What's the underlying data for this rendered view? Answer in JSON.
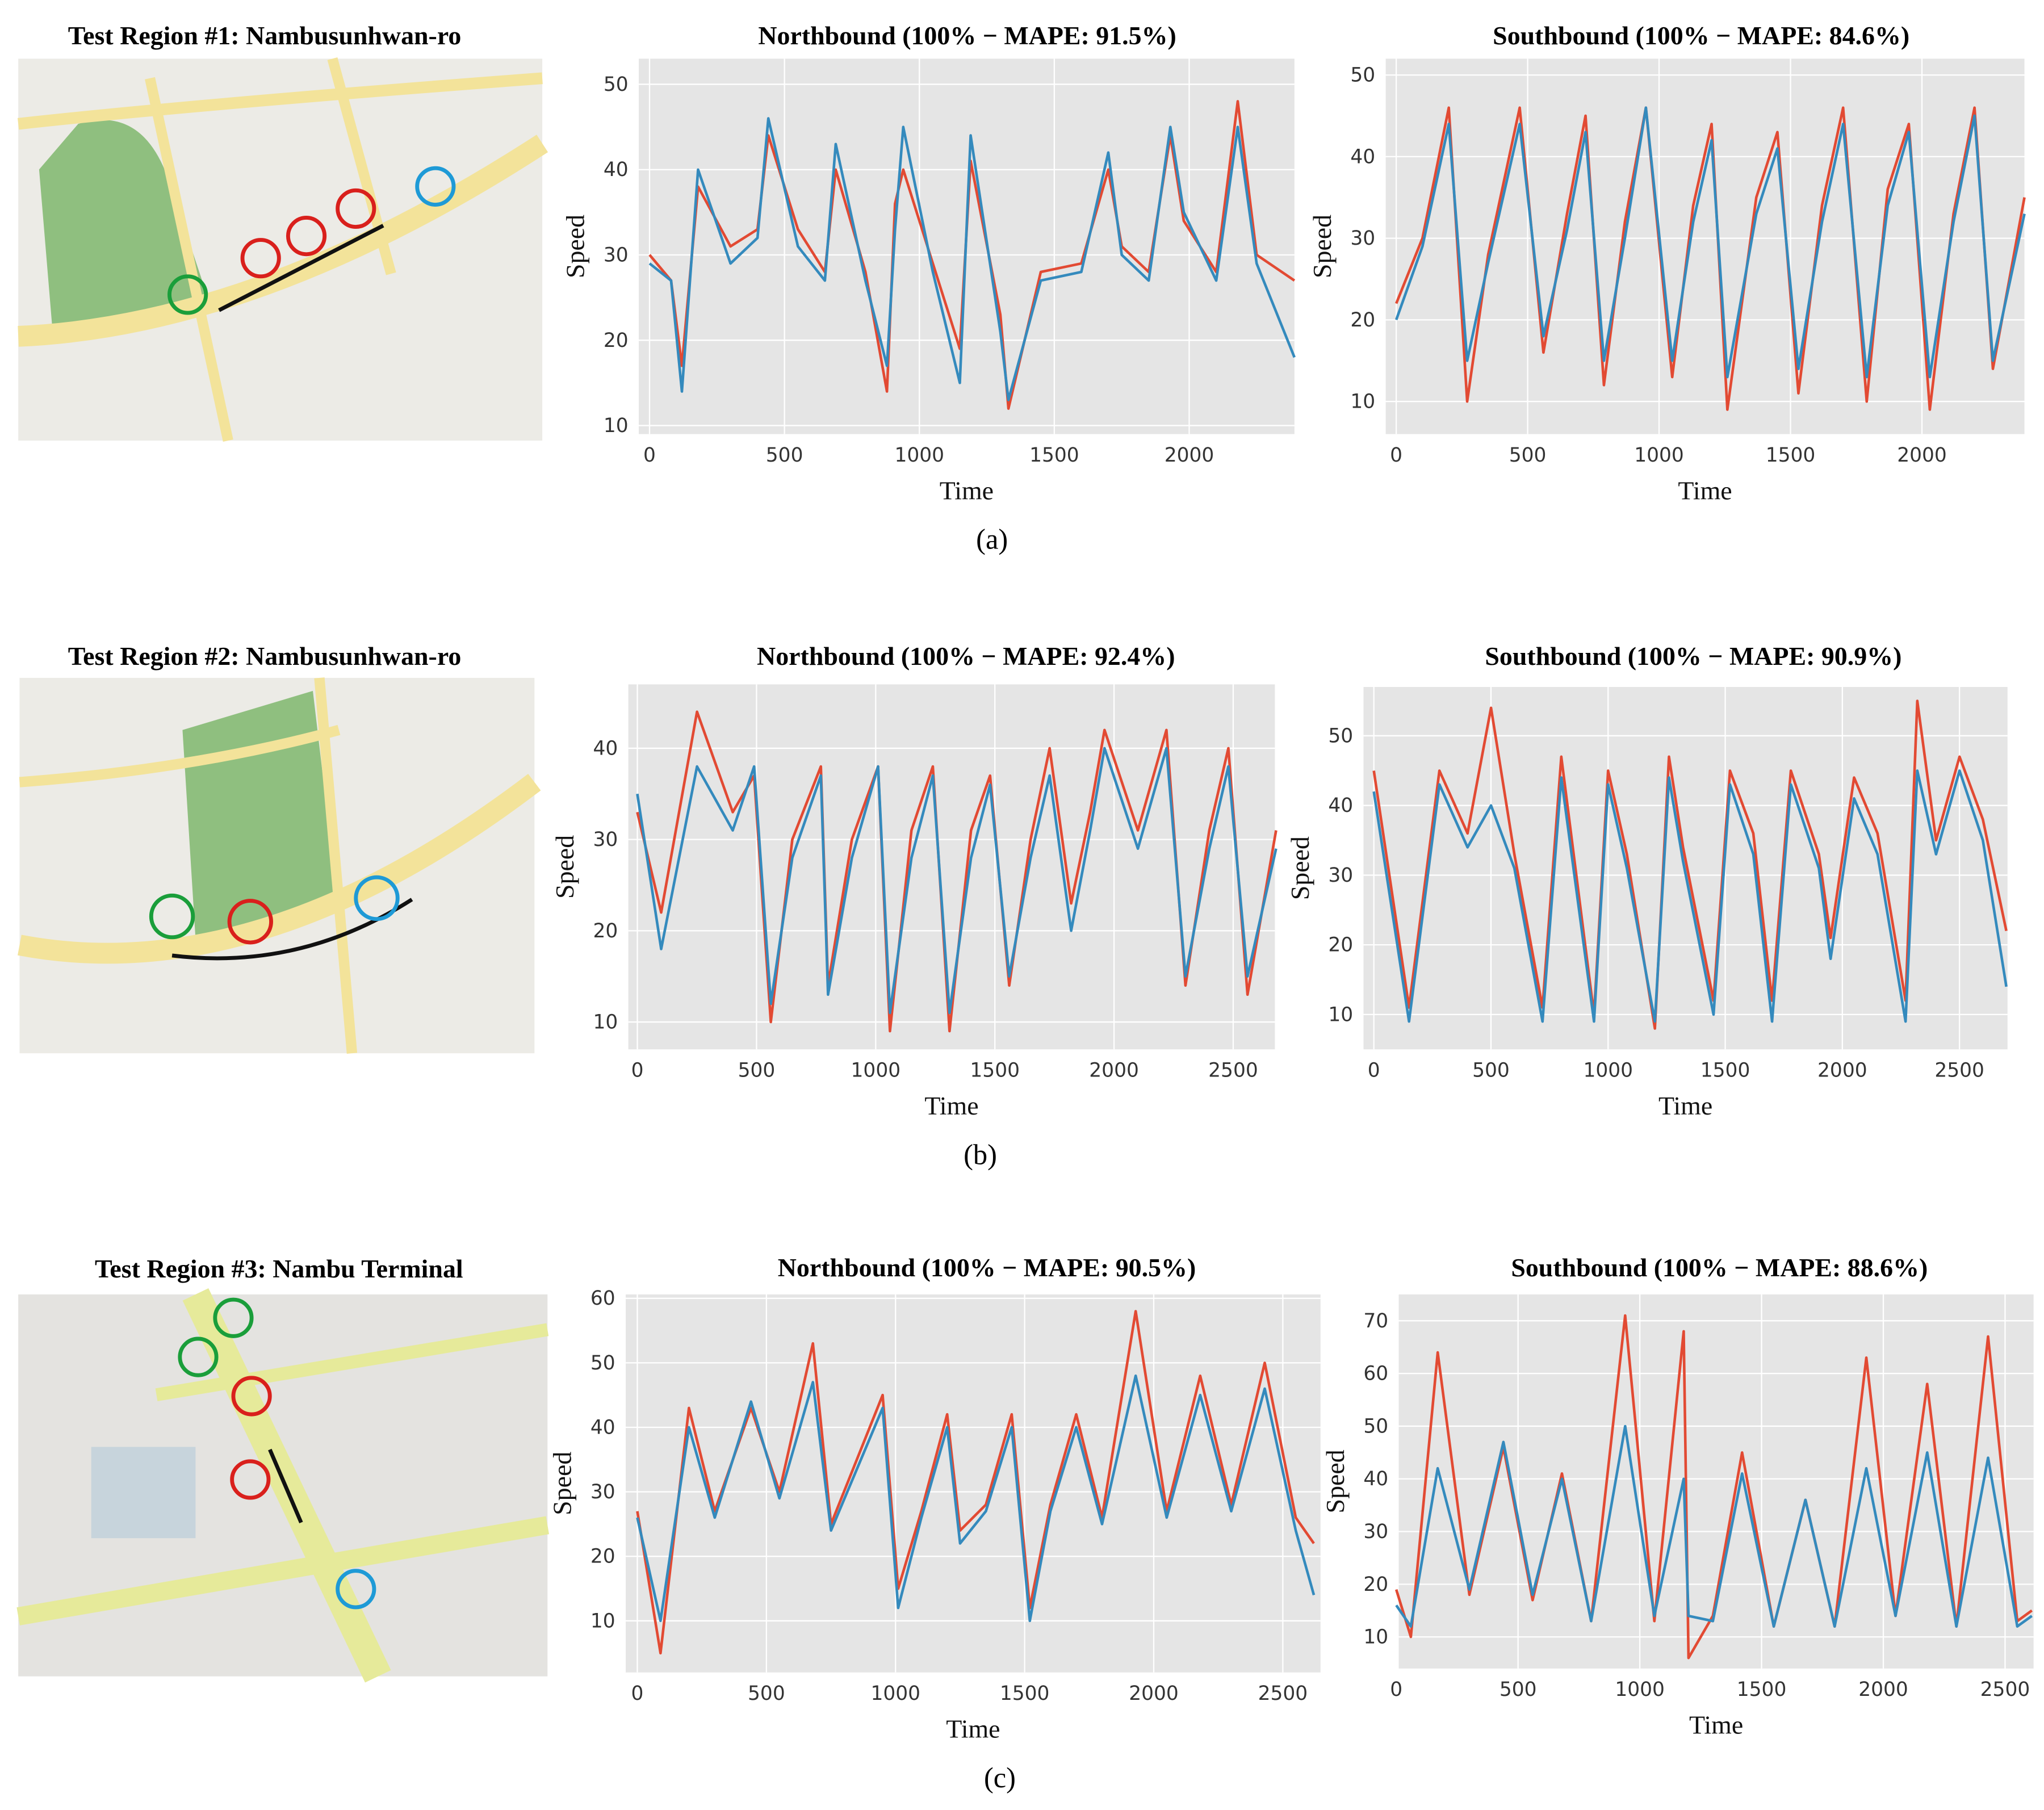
{
  "chart_data": [
    {
      "type": "line",
      "title": "Northbound (100% − MAPE: 91.5%)",
      "x_label": "Time",
      "y_label": "Speed",
      "x": [
        0,
        80,
        120,
        180,
        300,
        400,
        440,
        550,
        650,
        690,
        800,
        880,
        910,
        940,
        1050,
        1150,
        1190,
        1300,
        1330,
        1450,
        1600,
        1700,
        1750,
        1850,
        1930,
        1980,
        2100,
        2180,
        2250,
        2390
      ],
      "series": [
        {
          "color": "#e24a33",
          "values": [
            30,
            27,
            17,
            38,
            31,
            33,
            44,
            33,
            28,
            40,
            28,
            14,
            36,
            40,
            29,
            19,
            41,
            23,
            12,
            28,
            29,
            40,
            31,
            28,
            44,
            34,
            28,
            48,
            30,
            27
          ]
        },
        {
          "color": "#348abd",
          "values": [
            29,
            27,
            14,
            40,
            29,
            32,
            46,
            31,
            27,
            43,
            27,
            17,
            33,
            45,
            28,
            15,
            44,
            21,
            13,
            27,
            28,
            42,
            30,
            27,
            45,
            35,
            27,
            45,
            29,
            18
          ]
        }
      ],
      "xlim": [
        -40,
        2390
      ],
      "ylim": [
        9,
        53
      ],
      "xticks": [
        0,
        500,
        1000,
        1500,
        2000
      ],
      "yticks": [
        10,
        20,
        30,
        40,
        50
      ],
      "grid": true
    },
    {
      "type": "line",
      "title": "Southbound (100% − MAPE: 84.6%)",
      "x_label": "Time",
      "y_label": "Speed",
      "x": [
        0,
        100,
        200,
        270,
        350,
        470,
        560,
        650,
        720,
        790,
        870,
        950,
        1050,
        1130,
        1200,
        1260,
        1370,
        1450,
        1530,
        1620,
        1700,
        1790,
        1870,
        1950,
        2030,
        2120,
        2200,
        2270,
        2390
      ],
      "series": [
        {
          "color": "#e24a33",
          "values": [
            22,
            30,
            46,
            10,
            28,
            46,
            16,
            33,
            45,
            12,
            32,
            46,
            13,
            34,
            44,
            9,
            35,
            43,
            11,
            34,
            46,
            10,
            36,
            44,
            9,
            33,
            46,
            14,
            35
          ]
        },
        {
          "color": "#348abd",
          "values": [
            20,
            29,
            44,
            15,
            27,
            44,
            18,
            31,
            43,
            15,
            30,
            46,
            15,
            32,
            42,
            13,
            33,
            41,
            14,
            32,
            44,
            13,
            34,
            43,
            13,
            32,
            45,
            15,
            33
          ]
        }
      ],
      "xlim": [
        -40,
        2390
      ],
      "ylim": [
        6,
        52
      ],
      "xticks": [
        0,
        500,
        1000,
        1500,
        2000
      ],
      "yticks": [
        10,
        20,
        30,
        40,
        50
      ],
      "grid": true
    },
    {
      "type": "line",
      "title": "Northbound (100% − MAPE: 92.4%)",
      "x_label": "Time",
      "y_label": "Speed",
      "x": [
        0,
        100,
        250,
        400,
        490,
        560,
        650,
        770,
        800,
        900,
        1010,
        1060,
        1150,
        1240,
        1310,
        1400,
        1480,
        1560,
        1650,
        1730,
        1820,
        1900,
        1960,
        2100,
        2220,
        2300,
        2400,
        2480,
        2560,
        2680
      ],
      "series": [
        {
          "color": "#e24a33",
          "values": [
            33,
            22,
            44,
            33,
            37,
            10,
            30,
            38,
            14,
            30,
            38,
            9,
            31,
            38,
            9,
            31,
            37,
            14,
            30,
            40,
            23,
            33,
            42,
            31,
            42,
            14,
            31,
            40,
            13,
            31
          ]
        },
        {
          "color": "#348abd",
          "values": [
            35,
            18,
            38,
            31,
            38,
            12,
            28,
            37,
            13,
            28,
            38,
            11,
            28,
            37,
            11,
            28,
            36,
            15,
            28,
            37,
            20,
            31,
            40,
            29,
            40,
            15,
            29,
            38,
            15,
            29
          ]
        }
      ],
      "xlim": [
        -38,
        2675
      ],
      "ylim": [
        7,
        47
      ],
      "xticks": [
        0,
        500,
        1000,
        1500,
        2000,
        2500
      ],
      "yticks": [
        10,
        20,
        30,
        40
      ],
      "grid": true
    },
    {
      "type": "line",
      "title": "Southbound (100% − MAPE: 90.9%)",
      "x_label": "Time",
      "y_label": "Speed",
      "x": [
        0,
        150,
        280,
        400,
        500,
        600,
        720,
        800,
        940,
        1000,
        1080,
        1200,
        1260,
        1320,
        1450,
        1520,
        1620,
        1700,
        1780,
        1900,
        1950,
        2050,
        2150,
        2270,
        2320,
        2400,
        2500,
        2600,
        2700
      ],
      "series": [
        {
          "color": "#e24a33",
          "values": [
            45,
            11,
            45,
            36,
            54,
            33,
            11,
            47,
            10,
            45,
            33,
            8,
            47,
            34,
            12,
            45,
            36,
            12,
            45,
            33,
            21,
            44,
            36,
            12,
            55,
            35,
            47,
            38,
            22
          ]
        },
        {
          "color": "#348abd",
          "values": [
            42,
            9,
            43,
            34,
            40,
            31,
            9,
            44,
            9,
            43,
            31,
            9,
            44,
            32,
            10,
            43,
            33,
            9,
            43,
            31,
            18,
            41,
            33,
            9,
            45,
            33,
            45,
            35,
            14
          ]
        }
      ],
      "xlim": [
        -44,
        2705
      ],
      "ylim": [
        5,
        57
      ],
      "xticks": [
        0,
        500,
        1000,
        1500,
        2000,
        2500
      ],
      "yticks": [
        10,
        20,
        30,
        40,
        50
      ],
      "grid": true
    },
    {
      "type": "line",
      "title": "Northbound (100% − MAPE: 90.5%)",
      "x_label": "Time",
      "y_label": "Speed",
      "x": [
        0,
        90,
        200,
        300,
        440,
        550,
        680,
        750,
        950,
        1010,
        1100,
        1200,
        1250,
        1350,
        1450,
        1520,
        1600,
        1700,
        1800,
        1930,
        2050,
        2180,
        2300,
        2430,
        2550,
        2620
      ],
      "series": [
        {
          "color": "#e24a33",
          "values": [
            27,
            5,
            43,
            27,
            43,
            30,
            53,
            25,
            45,
            15,
            27,
            42,
            24,
            28,
            42,
            12,
            28,
            42,
            26,
            58,
            27,
            48,
            28,
            50,
            26,
            22
          ]
        },
        {
          "color": "#348abd",
          "values": [
            26,
            10,
            40,
            26,
            44,
            29,
            47,
            24,
            43,
            12,
            26,
            40,
            22,
            27,
            40,
            10,
            27,
            40,
            25,
            48,
            26,
            45,
            27,
            46,
            24,
            14
          ]
        }
      ],
      "xlim": [
        -45,
        2646
      ],
      "ylim": [
        2,
        60.6
      ],
      "xticks": [
        0,
        500,
        1000,
        1500,
        2000,
        2500
      ],
      "yticks": [
        10,
        20,
        30,
        40,
        50,
        60
      ],
      "grid": true
    },
    {
      "type": "line",
      "title": "Southbound (100% − MAPE: 88.6%)",
      "x_label": "Time",
      "y_label": "Speed",
      "x": [
        0,
        60,
        170,
        300,
        440,
        560,
        680,
        800,
        940,
        1060,
        1180,
        1200,
        1300,
        1420,
        1550,
        1680,
        1800,
        1930,
        2050,
        2180,
        2300,
        2430,
        2550,
        2610
      ],
      "series": [
        {
          "color": "#e24a33",
          "values": [
            19,
            10,
            64,
            18,
            46,
            17,
            41,
            13,
            71,
            13,
            68,
            6,
            14,
            45,
            12,
            36,
            12,
            63,
            14,
            58,
            12,
            67,
            13,
            15
          ]
        },
        {
          "color": "#348abd",
          "values": [
            16,
            12,
            42,
            19,
            47,
            18,
            40,
            13,
            50,
            14,
            40,
            14,
            13,
            41,
            12,
            36,
            12,
            42,
            14,
            45,
            12,
            44,
            12,
            14
          ]
        }
      ],
      "xlim": [
        10,
        2617
      ],
      "ylim": [
        4,
        75
      ],
      "xticks": [
        0,
        500,
        1000,
        1500,
        2000,
        2500
      ],
      "yticks": [
        10,
        20,
        30,
        40,
        50,
        60,
        70
      ],
      "grid": true
    }
  ],
  "figure": {
    "maps": [
      {
        "title": "Test Region #1: Nambusunhwan-ro"
      },
      {
        "title": "Test Region #2: Nambusunhwan-ro"
      },
      {
        "title": "Test Region #3: Nambu Terminal"
      }
    ],
    "captions": [
      "(a)",
      "(b)",
      "(c)"
    ]
  }
}
